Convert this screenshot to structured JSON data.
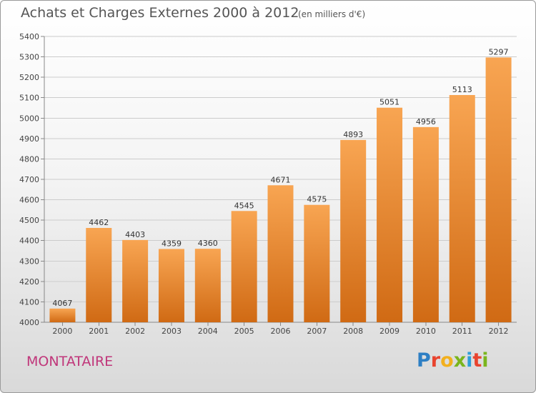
{
  "header": {
    "title": "Achats et Charges Externes 2000 à 2012",
    "unit": "(en milliers d'€)"
  },
  "footer": {
    "city": "MONTATAIRE",
    "logo": {
      "letters": [
        "P",
        "r",
        "o",
        "x",
        "i",
        "t",
        "i"
      ],
      "colors": [
        "#2e7fc4",
        "#e8442f",
        "#f2b01e",
        "#7ab51d",
        "#2e9fd8",
        "#e8442f",
        "#7ab51d"
      ]
    }
  },
  "colors": {
    "bar_top": "#f8a552",
    "bar_bottom": "#d06a14",
    "grid": "#cccccc",
    "axis": "#888888"
  },
  "chart_data": {
    "type": "bar",
    "title": "Achats et Charges Externes 2000 à 2012",
    "subtitle": "(en milliers d'€)",
    "xlabel": "",
    "ylabel": "",
    "categories": [
      "2000",
      "2001",
      "2002",
      "2003",
      "2004",
      "2005",
      "2006",
      "2007",
      "2008",
      "2009",
      "2010",
      "2011",
      "2012"
    ],
    "values": [
      4067,
      4462,
      4403,
      4359,
      4360,
      4545,
      4671,
      4575,
      4893,
      5051,
      4956,
      5113,
      5297
    ],
    "ylim": [
      4000,
      5400
    ],
    "yticks": [
      4000,
      4100,
      4200,
      4300,
      4400,
      4500,
      4600,
      4700,
      4800,
      4900,
      5000,
      5100,
      5200,
      5300,
      5400
    ],
    "grid": true,
    "data_labels": true
  }
}
